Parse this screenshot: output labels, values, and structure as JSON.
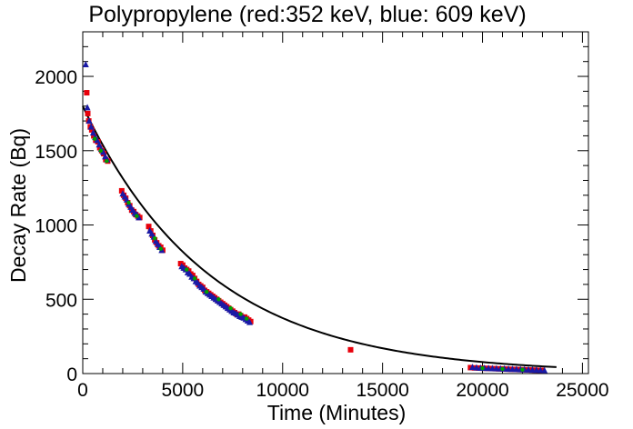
{
  "chart_data": {
    "type": "scatter",
    "title": "Polypropylene (red:352 keV, blue: 609 keV)",
    "xlabel": "Time (Minutes)",
    "ylabel": "Decay Rate (Bq)",
    "xlim": [
      0,
      25300
    ],
    "ylim": [
      0,
      2300
    ],
    "x_ticks": [
      0,
      5000,
      10000,
      15000,
      20000,
      25000
    ],
    "y_ticks": [
      0,
      500,
      1000,
      1500,
      2000
    ],
    "grid": false,
    "legend": "none",
    "colors": {
      "red_series": "#e8000b",
      "blue_series": "#1a1aa6",
      "green_series": "#00a000",
      "fit_line": "#000000"
    },
    "fit": {
      "type": "exponential",
      "x_range": [
        0,
        23700
      ],
      "A": 1800,
      "tau": 6360
    },
    "series": [
      {
        "marker": "square",
        "color": "#e8000b",
        "x": [
          200,
          250,
          300,
          380,
          450,
          550,
          650,
          760,
          850,
          950,
          1050,
          1150,
          1250,
          1950,
          2050,
          2150,
          2250,
          2350,
          2450,
          2550,
          2650,
          2750,
          2850,
          3300,
          3400,
          3500,
          3600,
          3700,
          3800,
          3900,
          4000,
          4900,
          5000,
          5100,
          5200,
          5300,
          5400,
          5500,
          5600,
          5700,
          5800,
          5900,
          6000,
          6100,
          6200,
          6300,
          6400,
          6500,
          6600,
          6700,
          6800,
          6900,
          7000,
          7100,
          7200,
          7300,
          7400,
          7500,
          7600,
          7700,
          7800,
          7900,
          8000,
          8100,
          8200,
          8300,
          8400,
          13400,
          19400,
          19600,
          19800,
          20000,
          20200,
          20400,
          20600,
          20800,
          21000,
          21200,
          21400,
          21600,
          21800,
          22000,
          22200,
          22400,
          22600,
          22800,
          23000
        ],
        "y": [
          1890,
          1750,
          1700,
          1660,
          1640,
          1600,
          1570,
          1560,
          1520,
          1500,
          1480,
          1440,
          1430,
          1230,
          1200,
          1180,
          1150,
          1130,
          1100,
          1090,
          1070,
          1060,
          1050,
          990,
          960,
          930,
          900,
          880,
          860,
          850,
          830,
          740,
          730,
          710,
          700,
          690,
          670,
          660,
          640,
          620,
          600,
          590,
          580,
          560,
          550,
          540,
          530,
          520,
          510,
          500,
          490,
          480,
          470,
          460,
          450,
          440,
          430,
          420,
          410,
          400,
          400,
          390,
          380,
          380,
          370,
          360,
          350,
          160,
          40,
          38,
          37,
          36,
          35,
          34,
          33,
          32,
          31,
          30,
          29,
          28,
          27,
          26,
          25,
          24,
          23,
          22,
          21
        ]
      },
      {
        "marker": "triangle",
        "color": "#1a1aa6",
        "x": [
          150,
          230,
          320,
          420,
          520,
          620,
          720,
          820,
          920,
          1020,
          1120,
          1220,
          2000,
          2100,
          2200,
          2300,
          2400,
          2500,
          2600,
          2700,
          2800,
          3350,
          3450,
          3550,
          3650,
          3750,
          3850,
          3950,
          4950,
          5050,
          5150,
          5250,
          5350,
          5450,
          5550,
          5650,
          5750,
          5850,
          5950,
          6050,
          6150,
          6250,
          6350,
          6450,
          6550,
          6650,
          6750,
          6850,
          6950,
          7050,
          7150,
          7250,
          7350,
          7450,
          7550,
          7650,
          7750,
          7850,
          7950,
          8050,
          8150,
          8250,
          8350,
          19500,
          19700,
          19900,
          20100,
          20300,
          20500,
          20700,
          20900,
          21100,
          21300,
          21500,
          21700,
          21900,
          22100,
          22300,
          22500,
          22700,
          22900,
          23100
        ],
        "y": [
          2080,
          1790,
          1700,
          1660,
          1620,
          1590,
          1570,
          1540,
          1510,
          1490,
          1460,
          1440,
          1210,
          1190,
          1170,
          1140,
          1120,
          1100,
          1080,
          1070,
          1050,
          960,
          940,
          920,
          890,
          870,
          850,
          830,
          720,
          710,
          700,
          680,
          670,
          650,
          640,
          620,
          610,
          590,
          580,
          570,
          550,
          540,
          530,
          520,
          510,
          500,
          490,
          480,
          470,
          460,
          450,
          440,
          430,
          420,
          410,
          405,
          395,
          385,
          380,
          375,
          365,
          355,
          345,
          42,
          39,
          37,
          36,
          35,
          34,
          33,
          32,
          31,
          30,
          29,
          28,
          27,
          26,
          25,
          24,
          23,
          22,
          21
        ]
      },
      {
        "marker": "circle",
        "color": "#00a000",
        "x": [
          600,
          900,
          1200,
          2300,
          2700,
          3600,
          3900,
          5200,
          5600,
          6200,
          6800,
          7400,
          7900,
          8200,
          20000,
          21000,
          22000
        ],
        "y": [
          1580,
          1500,
          1430,
          1150,
          1060,
          910,
          840,
          700,
          640,
          550,
          500,
          440,
          400,
          370,
          36,
          31,
          26
        ]
      }
    ]
  }
}
